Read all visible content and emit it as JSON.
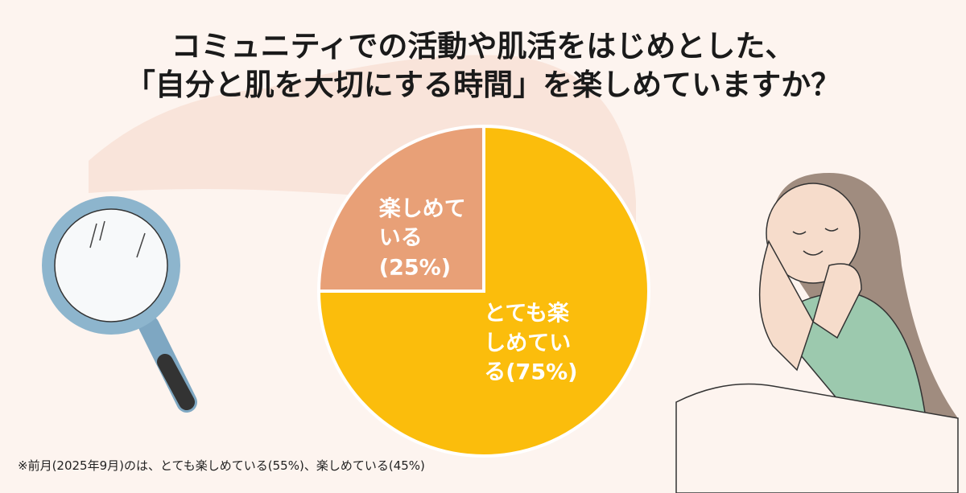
{
  "chart_data": {
    "type": "pie",
    "title": [
      "コミュニティでの活動や肌活をはじめとした、",
      "「自分と肌を大切にする時間」を楽しめていますか？"
    ],
    "categories": [
      "とても楽しめている",
      "楽しめている"
    ],
    "values": [
      75,
      25
    ],
    "value_labels": [
      "(75%)",
      "(25%)"
    ],
    "colors": [
      "#fbbd0c",
      "#e8a077"
    ],
    "start": "top",
    "direction": "clockwise",
    "note": "※前月(2025年9月)のは、とても楽しめている(55%)、楽しめている(45%)"
  }
}
